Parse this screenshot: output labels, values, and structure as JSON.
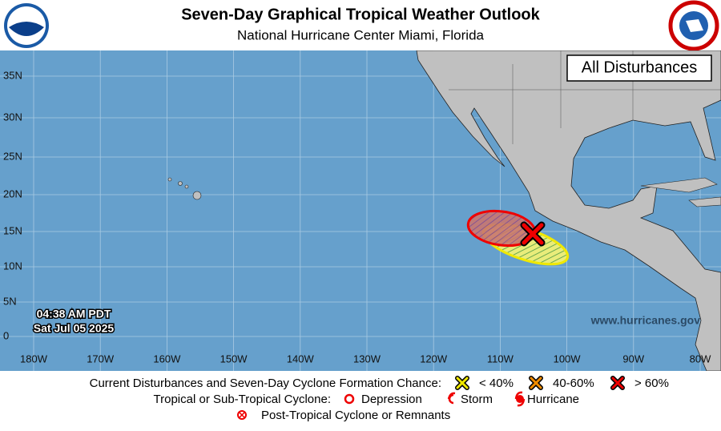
{
  "header": {
    "title": "Seven-Day Graphical Tropical Weather Outlook",
    "subtitle": "National Hurricane Center  Miami, Florida"
  },
  "map": {
    "panel_label": "All Disturbances",
    "time": "04:38 AM PDT",
    "date": "Sat Jul 05 2025",
    "website": "www.hurricanes.gov",
    "lat_labels": [
      "35N",
      "30N",
      "25N",
      "20N",
      "15N",
      "10N",
      "5N",
      "0"
    ],
    "lon_labels": [
      "180W",
      "170W",
      "160W",
      "150W",
      "140W",
      "130W",
      "120W",
      "110W",
      "100W",
      "90W",
      "80W"
    ]
  },
  "legend": {
    "row1_label": "Current Disturbances and Seven-Day Cyclone Formation Chance:",
    "low": "< 40%",
    "medium": "40-60%",
    "high": "> 60%",
    "row2_label": "Tropical or Sub-Tropical Cyclone:",
    "depression": "Depression",
    "storm": "Storm",
    "hurricane": "Hurricane",
    "post_tropical": "Post-Tropical Cyclone or Remnants"
  }
}
